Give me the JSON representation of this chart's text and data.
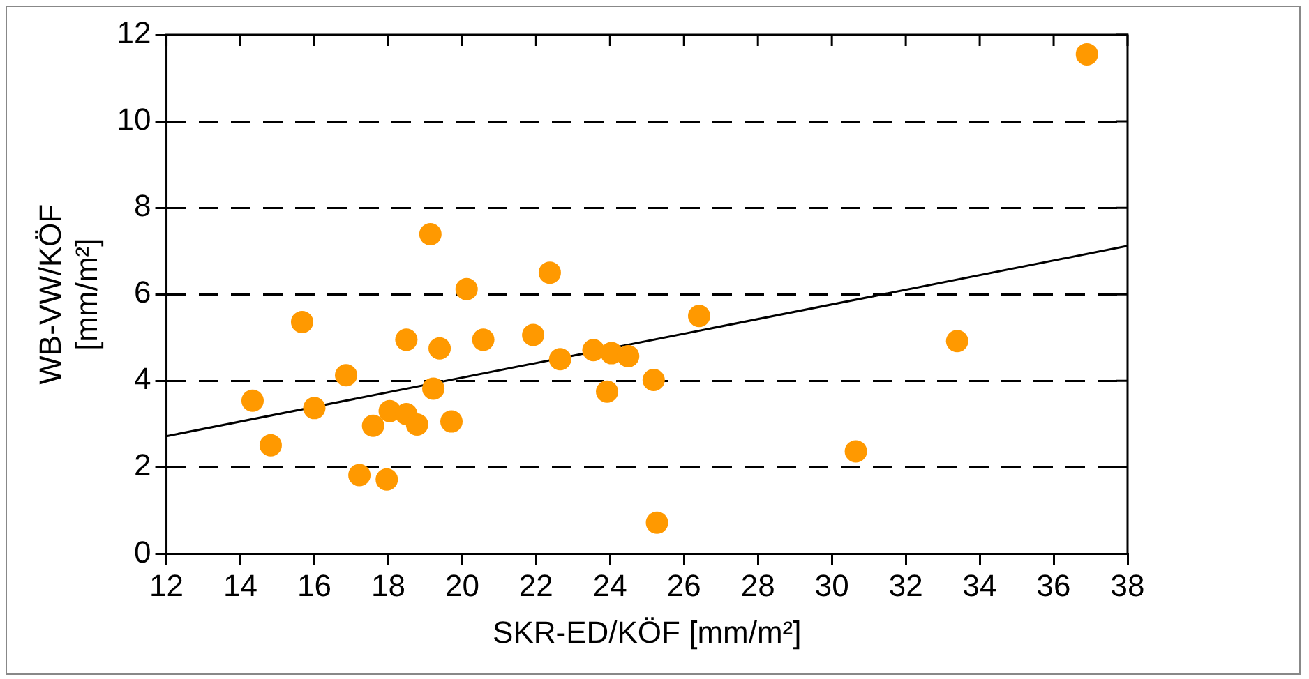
{
  "chart_data": {
    "type": "scatter",
    "xlabel": "SKR-ED/KÖF [mm/m²]",
    "ylabel": "WB-VW/KÖF\n[mm/m²]",
    "xlim": [
      12,
      38
    ],
    "xticks": [
      12,
      14,
      16,
      18,
      20,
      22,
      24,
      26,
      28,
      30,
      32,
      34,
      36,
      38
    ],
    "ylim": [
      0,
      12
    ],
    "yticks": [
      0,
      2,
      4,
      6,
      8,
      10,
      12
    ],
    "grid": "y",
    "marker": "circle",
    "series": [
      {
        "color": "#ff9900",
        "x": [
          14.33,
          14.82,
          15.67,
          16.0,
          16.86,
          17.22,
          17.59,
          17.96,
          18.04,
          18.49,
          18.49,
          18.78,
          19.14,
          19.22,
          19.39,
          19.71,
          20.12,
          20.57,
          21.92,
          22.37,
          22.65,
          23.55,
          23.92,
          24.04,
          24.49,
          25.18,
          25.27,
          26.41,
          30.65,
          33.39,
          36.9
        ],
        "values": [
          3.54,
          2.51,
          5.36,
          3.37,
          4.13,
          1.82,
          2.96,
          1.72,
          3.3,
          4.95,
          3.23,
          2.99,
          7.39,
          3.82,
          4.75,
          3.06,
          6.12,
          4.95,
          5.06,
          6.5,
          4.5,
          4.71,
          3.75,
          4.64,
          4.57,
          4.02,
          0.72,
          5.5,
          2.37,
          4.92,
          11.55
        ]
      },
      {
        "type": "line",
        "color": "#000000",
        "x": [
          12,
          38
        ],
        "values": [
          2.72,
          7.12
        ],
        "marker": "none"
      }
    ]
  }
}
